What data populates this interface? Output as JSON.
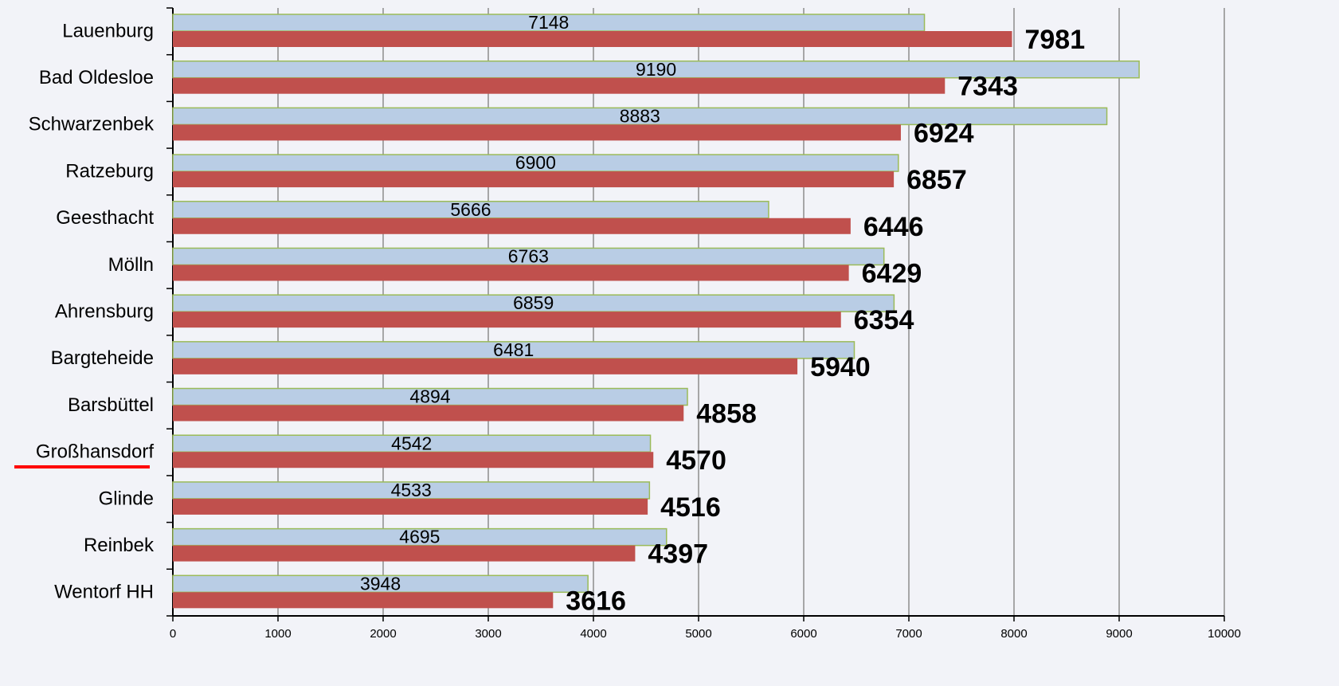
{
  "chart_data": {
    "type": "hbar",
    "categories": [
      "Lauenburg",
      "Bad Oldesloe",
      "Schwarzenbek",
      "Ratzeburg",
      "Geesthacht",
      "Mölln",
      "Ahrensburg",
      "Bargteheide",
      "Barsbüttel",
      "Großhansdorf",
      "Glinde",
      "Reinbek",
      "Wentorf HH"
    ],
    "series": [
      {
        "color": "#b9cde5",
        "values": [
          7148,
          9190,
          8883,
          6900,
          5666,
          6763,
          6859,
          6481,
          4894,
          4542,
          4533,
          4695,
          3948
        ]
      },
      {
        "color": "#c0504d",
        "values": [
          7981,
          7343,
          6924,
          6857,
          6446,
          6429,
          6354,
          5940,
          4858,
          4570,
          4516,
          4397,
          3616
        ]
      }
    ],
    "xlim": [
      0,
      10000
    ],
    "xticks": [
      0,
      1000,
      2000,
      3000,
      4000,
      5000,
      6000,
      7000,
      8000,
      9000,
      10000
    ],
    "grid": true
  }
}
